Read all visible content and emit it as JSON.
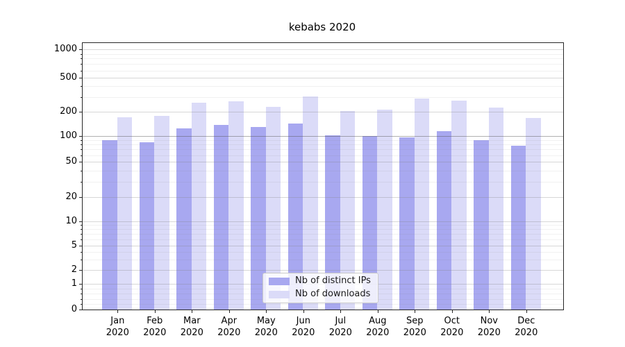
{
  "title": "kebabs 2020",
  "chart_data": {
    "type": "bar",
    "title": "kebabs 2020",
    "categories": [
      "Jan 2020",
      "Feb 2020",
      "Mar 2020",
      "Apr 2020",
      "May 2020",
      "Jun 2020",
      "Jul 2020",
      "Aug 2020",
      "Sep 2020",
      "Oct 2020",
      "Nov 2020",
      "Dec 2020"
    ],
    "series": [
      {
        "name": "Nb of distinct IPs",
        "color": "#a8a8f0",
        "values": [
          90,
          85,
          125,
          138,
          130,
          143,
          102,
          100,
          96,
          116,
          90,
          78
        ]
      },
      {
        "name": "Nb of downloads",
        "color": "#dbdbf8",
        "values": [
          172,
          178,
          255,
          267,
          228,
          302,
          205,
          211,
          286,
          271,
          226,
          168
        ]
      }
    ],
    "yscale": "symlog",
    "yticks": [
      0,
      1,
      2,
      5,
      10,
      20,
      50,
      100,
      200,
      500,
      1000
    ],
    "yticks_minor": [
      0.2,
      0.4,
      0.6,
      0.8,
      3,
      4,
      6,
      7,
      8,
      9,
      30,
      40,
      60,
      70,
      80,
      90,
      300,
      400,
      600,
      700,
      800,
      900
    ],
    "highlighted_gridline": 100,
    "xlabel": "",
    "ylabel": "",
    "ylim": [
      0,
      1200
    ],
    "grid": "both",
    "legend_position": "lower-center",
    "background": "#ffffff"
  },
  "legend": {
    "items": [
      {
        "label": "Nb of distinct IPs",
        "color": "#a8a8f0"
      },
      {
        "label": "Nb of downloads",
        "color": "#dbdbf8"
      }
    ]
  }
}
